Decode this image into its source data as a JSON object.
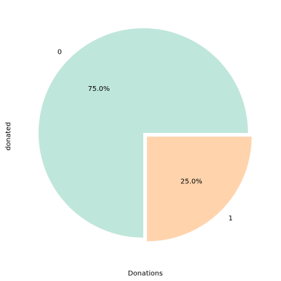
{
  "chart_data": {
    "type": "pie",
    "title": "",
    "xlabel": "Donations",
    "ylabel": "donated",
    "start_angle_deg": 0,
    "direction": "counterclockwise",
    "slices": [
      {
        "label": "0",
        "value": 75.0,
        "pct_label": "75.0%",
        "color": "#bfe6da",
        "explode": 0.0
      },
      {
        "label": "1",
        "value": 25.0,
        "pct_label": "25.0%",
        "color": "#ffd4ad",
        "explode": 0.05
      }
    ]
  }
}
